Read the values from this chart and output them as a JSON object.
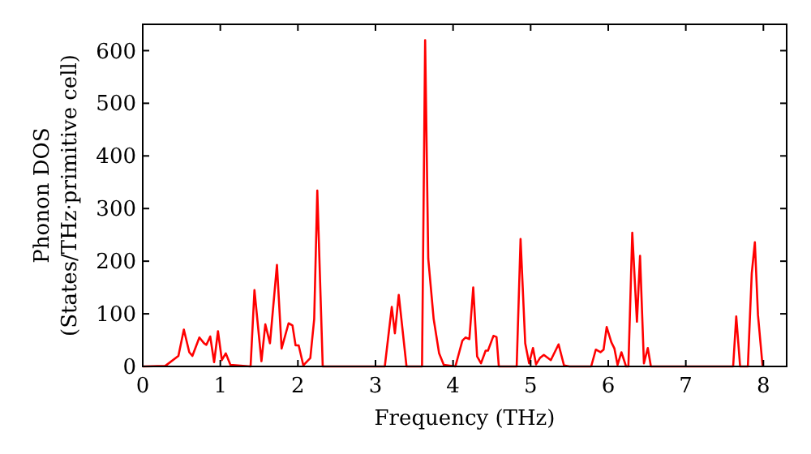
{
  "chart_data": {
    "type": "line",
    "xlabel": "Frequency (THz)",
    "ylabel": "Phonon DOS\n(States/THz·primitive cell)",
    "xlim": [
      0,
      8.3
    ],
    "ylim": [
      0,
      650
    ],
    "xticks": [
      0,
      1,
      2,
      3,
      4,
      5,
      6,
      7,
      8
    ],
    "yticks": [
      0,
      100,
      200,
      300,
      400,
      500,
      600
    ],
    "grid": false,
    "marker": "none",
    "line_style": "solid",
    "series": [
      {
        "color": "#ff0000",
        "x": [
          0,
          0.29,
          0.46,
          0.53,
          0.6,
          0.64,
          0.73,
          0.79,
          0.82,
          0.87,
          0.92,
          0.97,
          1.02,
          1.07,
          1.13,
          1.39,
          1.44,
          1.53,
          1.58,
          1.64,
          1.73,
          1.79,
          1.88,
          1.93,
          1.97,
          2.01,
          2.07,
          2.16,
          2.21,
          2.25,
          2.32,
          3.12,
          3.21,
          3.25,
          3.3,
          3.4,
          3.6,
          3.64,
          3.68,
          3.75,
          3.82,
          3.88,
          4.03,
          4.12,
          4.16,
          4.21,
          4.26,
          4.31,
          4.36,
          4.42,
          4.45,
          4.52,
          4.56,
          4.59,
          4.82,
          4.87,
          4.93,
          4.98,
          5.03,
          5.07,
          5.12,
          5.17,
          5.26,
          5.36,
          5.43,
          5.5,
          5.78,
          5.84,
          5.9,
          5.94,
          5.98,
          6.04,
          6.08,
          6.12,
          6.17,
          6.23,
          6.26,
          6.31,
          6.37,
          6.41,
          6.46,
          6.51,
          6.55,
          7.61,
          7.65,
          7.7,
          7.8,
          7.85,
          7.89,
          7.93,
          7.99
        ],
        "values": [
          0,
          1,
          20,
          70,
          27,
          20,
          55,
          44,
          41,
          57,
          8,
          67,
          12,
          25,
          3,
          0,
          145,
          10,
          80,
          44,
          193,
          34,
          82,
          78,
          40,
          40,
          2,
          16,
          90,
          334,
          0,
          0,
          113,
          63,
          136,
          0,
          0,
          620,
          205,
          90,
          25,
          3,
          0,
          49,
          55,
          52,
          150,
          19,
          6,
          30,
          30,
          58,
          56,
          0,
          0,
          242,
          44,
          6,
          35,
          4,
          16,
          22,
          12,
          42,
          2,
          0,
          0,
          32,
          27,
          32,
          75,
          46,
          34,
          3,
          27,
          0,
          0,
          254,
          85,
          210,
          6,
          35,
          0,
          0,
          95,
          0,
          0,
          177,
          236,
          98,
          0
        ]
      }
    ]
  }
}
